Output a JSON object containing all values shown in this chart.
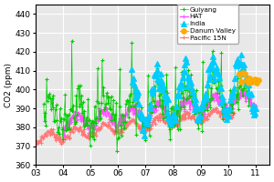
{
  "ylabel": "CO2 (ppm)",
  "ylim": [
    360,
    445
  ],
  "yticks": [
    360,
    370,
    380,
    390,
    400,
    410,
    420,
    430,
    440
  ],
  "xlim": [
    2003.0,
    2011.5
  ],
  "xticks": [
    2003,
    2004,
    2005,
    2006,
    2007,
    2008,
    2009,
    2010,
    2011
  ],
  "xticklabels": [
    "03",
    "04",
    "05",
    "06",
    "07",
    "08",
    "09",
    "10",
    "11"
  ],
  "background_color": "#e8e8e8",
  "series": {
    "Guiyang": {
      "color": "#00cc00",
      "marker": "+",
      "linestyle": "-",
      "linewidth": 0.5,
      "markersize": 3.5,
      "base": 383,
      "trend": 1.9,
      "amplitude": 8,
      "noise": 6,
      "spike_extra": 18,
      "start_year": 2003.3,
      "end_year": 2010.8,
      "n_points": 280
    },
    "HAT": {
      "color": "#ff55ff",
      "marker": "+",
      "linestyle": "-",
      "linewidth": 1.0,
      "markersize": 2.5,
      "base": 380,
      "trend": 1.9,
      "amplitude": 4,
      "noise": 1.5,
      "start_year": 2004.0,
      "end_year": 2011.0,
      "n_points": 300
    },
    "India": {
      "color": "#00ccff",
      "marker": "^",
      "linestyle": "-",
      "linewidth": 0.5,
      "markersize": 4,
      "base": 387,
      "trend": 2.0,
      "amplitude": 13,
      "noise": 3,
      "start_year": 2006.5,
      "end_year": 2011.0,
      "n_points": 160
    },
    "Danum Valley": {
      "color": "#ffaa00",
      "marker": "o",
      "linestyle": "-",
      "linewidth": 0.8,
      "markersize": 4,
      "base": 390,
      "trend": 2.0,
      "amplitude": 2,
      "noise": 1.5,
      "start_year": 2010.4,
      "end_year": 2011.1,
      "n_points": 12
    },
    "Pacific 15N": {
      "color": "#ff7777",
      "marker": "+",
      "linestyle": "-",
      "linewidth": 0.9,
      "markersize": 2.5,
      "base": 374,
      "trend": 1.9,
      "amplitude": 2.5,
      "noise": 1.0,
      "start_year": 2003.0,
      "end_year": 2010.2,
      "n_points": 260
    }
  },
  "legend_order": [
    "Guiyang",
    "HAT",
    "India",
    "Danum Valley",
    "Pacific 15N"
  ],
  "legend_markers": {
    "Guiyang": "+",
    "HAT": "+",
    "India": "^",
    "Danum Valley": "o",
    "Pacific 15N": "+"
  }
}
